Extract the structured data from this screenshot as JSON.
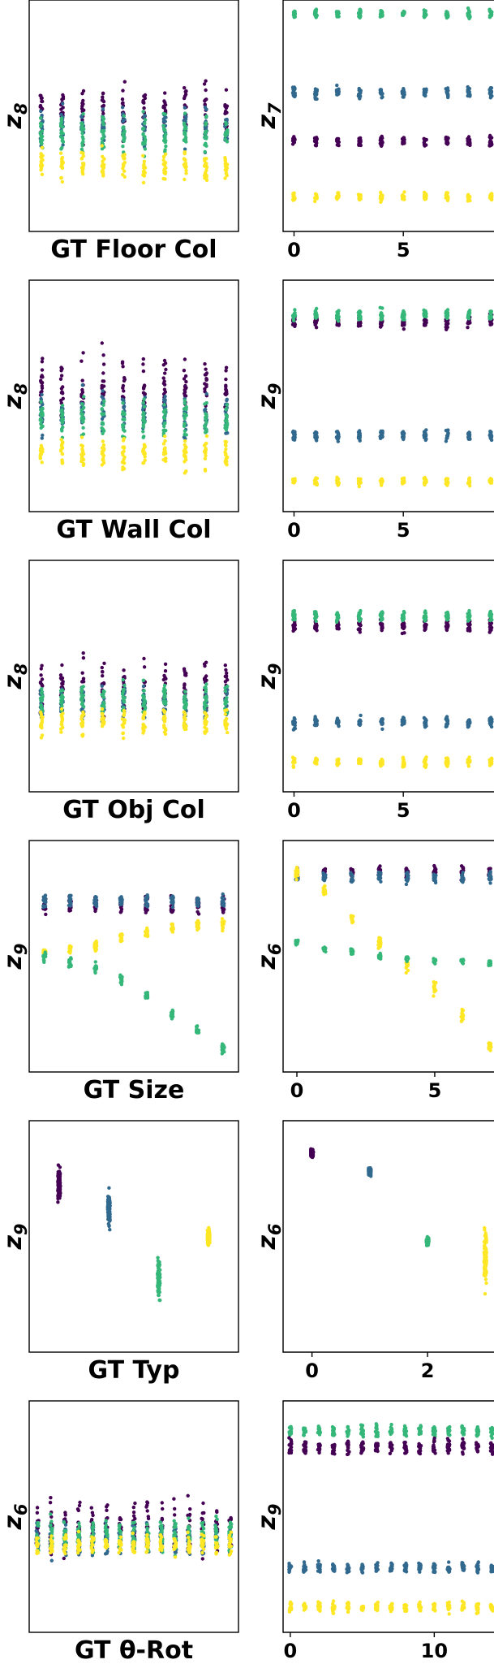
{
  "colors": {
    "class_purple": "#440154",
    "class_blue": "#31688e",
    "class_green": "#35b779",
    "class_yellow": "#fde725",
    "frame": "#000000"
  },
  "chart_data": [
    {
      "type": "scatter",
      "row": 1,
      "xlabel": "GT Floor Col",
      "ylabel": "z",
      "ylabel_sub": "8",
      "x": [
        0,
        1,
        2,
        3,
        4,
        5,
        6,
        7,
        8,
        9
      ],
      "clusters": [
        {
          "class": 0,
          "center": 0.52,
          "spread": 0.2
        },
        {
          "class": 1,
          "center": 0.45,
          "spread": 0.15
        },
        {
          "class": 2,
          "center": 0.42,
          "spread": 0.15
        },
        {
          "class": 3,
          "center": 0.28,
          "spread": 0.12
        }
      ]
    },
    {
      "type": "scatter",
      "row": 1,
      "xlabel": "",
      "ylabel": "z",
      "ylabel_sub": "7",
      "x": [
        0,
        1,
        2,
        3,
        4,
        5,
        6,
        7,
        8,
        9
      ],
      "x_ticks": [
        0,
        5
      ],
      "clusters": [
        {
          "class": 2,
          "center": 0.94,
          "spread": 0.03
        },
        {
          "class": 1,
          "center": 0.6,
          "spread": 0.04
        },
        {
          "class": 0,
          "center": 0.39,
          "spread": 0.04
        },
        {
          "class": 3,
          "center": 0.15,
          "spread": 0.03
        }
      ]
    },
    {
      "type": "scatter",
      "row": 2,
      "xlabel": "GT Wall Col",
      "ylabel": "z",
      "ylabel_sub": "8",
      "x": [
        0,
        1,
        2,
        3,
        4,
        5,
        6,
        7,
        8,
        9
      ],
      "clusters": [
        {
          "class": 0,
          "center": 0.55,
          "spread": 0.22
        },
        {
          "class": 1,
          "center": 0.42,
          "spread": 0.15
        },
        {
          "class": 2,
          "center": 0.4,
          "spread": 0.15
        },
        {
          "class": 3,
          "center": 0.25,
          "spread": 0.12
        }
      ]
    },
    {
      "type": "scatter",
      "row": 2,
      "xlabel": "",
      "ylabel": "z",
      "ylabel_sub": "9",
      "x": [
        0,
        1,
        2,
        3,
        4,
        5,
        6,
        7,
        8,
        9
      ],
      "x_ticks": [
        0,
        5
      ],
      "clusters": [
        {
          "class": 0,
          "center": 0.82,
          "spread": 0.05
        },
        {
          "class": 2,
          "center": 0.85,
          "spread": 0.04
        },
        {
          "class": 1,
          "center": 0.33,
          "spread": 0.04
        },
        {
          "class": 3,
          "center": 0.13,
          "spread": 0.03
        }
      ]
    },
    {
      "type": "scatter",
      "row": 3,
      "xlabel": "GT Obj Col",
      "ylabel": "z",
      "ylabel_sub": "8",
      "x": [
        0,
        1,
        2,
        3,
        4,
        5,
        6,
        7,
        8,
        9
      ],
      "clusters": [
        {
          "class": 0,
          "center": 0.45,
          "spread": 0.2
        },
        {
          "class": 1,
          "center": 0.38,
          "spread": 0.13
        },
        {
          "class": 2,
          "center": 0.4,
          "spread": 0.13
        },
        {
          "class": 3,
          "center": 0.3,
          "spread": 0.1
        }
      ]
    },
    {
      "type": "scatter",
      "row": 3,
      "xlabel": "",
      "ylabel": "z",
      "ylabel_sub": "9",
      "x": [
        0,
        1,
        2,
        3,
        4,
        5,
        6,
        7,
        8,
        9
      ],
      "x_ticks": [
        0,
        5
      ],
      "clusters": [
        {
          "class": 0,
          "center": 0.72,
          "spread": 0.05
        },
        {
          "class": 2,
          "center": 0.76,
          "spread": 0.04
        },
        {
          "class": 1,
          "center": 0.3,
          "spread": 0.04
        },
        {
          "class": 3,
          "center": 0.13,
          "spread": 0.04
        }
      ]
    },
    {
      "type": "scatter",
      "row": 4,
      "xlabel": "GT Size",
      "ylabel": "z",
      "ylabel_sub": "9",
      "x": [
        0,
        1,
        2,
        3,
        4,
        5,
        6,
        7
      ],
      "clusters": [
        {
          "class": 0,
          "center": 0.72,
          "spread": 0.07
        },
        {
          "class": 1,
          "center": 0.74,
          "spread": 0.05
        },
        {
          "class": 3,
          "values": [
            0.52,
            0.53,
            0.55,
            0.58,
            0.6,
            0.62,
            0.63,
            0.64
          ],
          "spread": 0.04
        },
        {
          "class": 2,
          "values": [
            0.5,
            0.47,
            0.45,
            0.4,
            0.33,
            0.25,
            0.18,
            0.1
          ],
          "spread": 0.04
        }
      ]
    },
    {
      "type": "scatter",
      "row": 4,
      "xlabel": "",
      "ylabel": "z",
      "ylabel_sub": "6",
      "x": [
        0,
        1,
        2,
        3,
        4,
        5,
        6,
        7
      ],
      "x_ticks": [
        0,
        5
      ],
      "clusters": [
        {
          "class": 0,
          "center": 0.86,
          "spread": 0.05
        },
        {
          "class": 1,
          "center": 0.84,
          "spread": 0.04
        },
        {
          "class": 3,
          "values": [
            0.86,
            0.78,
            0.66,
            0.56,
            0.46,
            0.36,
            0.24,
            0.11
          ],
          "spread": 0.05
        },
        {
          "class": 2,
          "values": [
            0.56,
            0.53,
            0.52,
            0.5,
            0.49,
            0.48,
            0.48,
            0.47
          ],
          "spread": 0.02
        }
      ]
    },
    {
      "type": "scatter",
      "row": 5,
      "xlabel": "GT Typ",
      "ylabel": "z",
      "ylabel_sub": "9",
      "x": [
        0,
        1,
        2,
        3
      ],
      "clusters": [
        {
          "class": 0,
          "x": 0,
          "center": 0.72,
          "spread": 0.12
        },
        {
          "class": 1,
          "x": 1,
          "center": 0.62,
          "spread": 0.12
        },
        {
          "class": 2,
          "x": 2,
          "center": 0.32,
          "spread": 0.16
        },
        {
          "class": 3,
          "x": 3,
          "center": 0.5,
          "spread": 0.06
        }
      ]
    },
    {
      "type": "scatter",
      "row": 5,
      "xlabel": "",
      "ylabel": "z",
      "ylabel_sub": "6",
      "x": [
        0,
        1,
        2,
        3
      ],
      "x_ticks": [
        0,
        2
      ],
      "clusters": [
        {
          "class": 0,
          "x": 0,
          "center": 0.86,
          "spread": 0.03
        },
        {
          "class": 1,
          "x": 1,
          "center": 0.78,
          "spread": 0.03
        },
        {
          "class": 2,
          "x": 2,
          "center": 0.48,
          "spread": 0.03
        },
        {
          "class": 3,
          "x": 3,
          "center": 0.42,
          "spread": 0.2
        }
      ]
    },
    {
      "type": "scatter",
      "row": 6,
      "xlabel": "GT θ-Rot",
      "ylabel": "z",
      "ylabel_sub": "6",
      "x": [
        0,
        1,
        2,
        3,
        4,
        5,
        6,
        7,
        8,
        9,
        10,
        11,
        12,
        13,
        14
      ],
      "clusters": [
        {
          "class": 0,
          "center": 0.45,
          "spread": 0.2
        },
        {
          "class": 1,
          "center": 0.4,
          "spread": 0.12
        },
        {
          "class": 2,
          "center": 0.42,
          "spread": 0.12
        },
        {
          "class": 3,
          "center": 0.38,
          "spread": 0.08
        }
      ]
    },
    {
      "type": "scatter",
      "row": 6,
      "xlabel": "",
      "ylabel": "z",
      "ylabel_sub": "9",
      "x": [
        0,
        1,
        2,
        3,
        4,
        5,
        6,
        7,
        8,
        9,
        10,
        11,
        12,
        13,
        14
      ],
      "x_ticks": [
        0,
        10
      ],
      "clusters": [
        {
          "class": 2,
          "center": 0.87,
          "spread": 0.04
        },
        {
          "class": 0,
          "center": 0.8,
          "spread": 0.05
        },
        {
          "class": 1,
          "center": 0.28,
          "spread": 0.04
        },
        {
          "class": 3,
          "center": 0.11,
          "spread": 0.04
        }
      ]
    }
  ]
}
